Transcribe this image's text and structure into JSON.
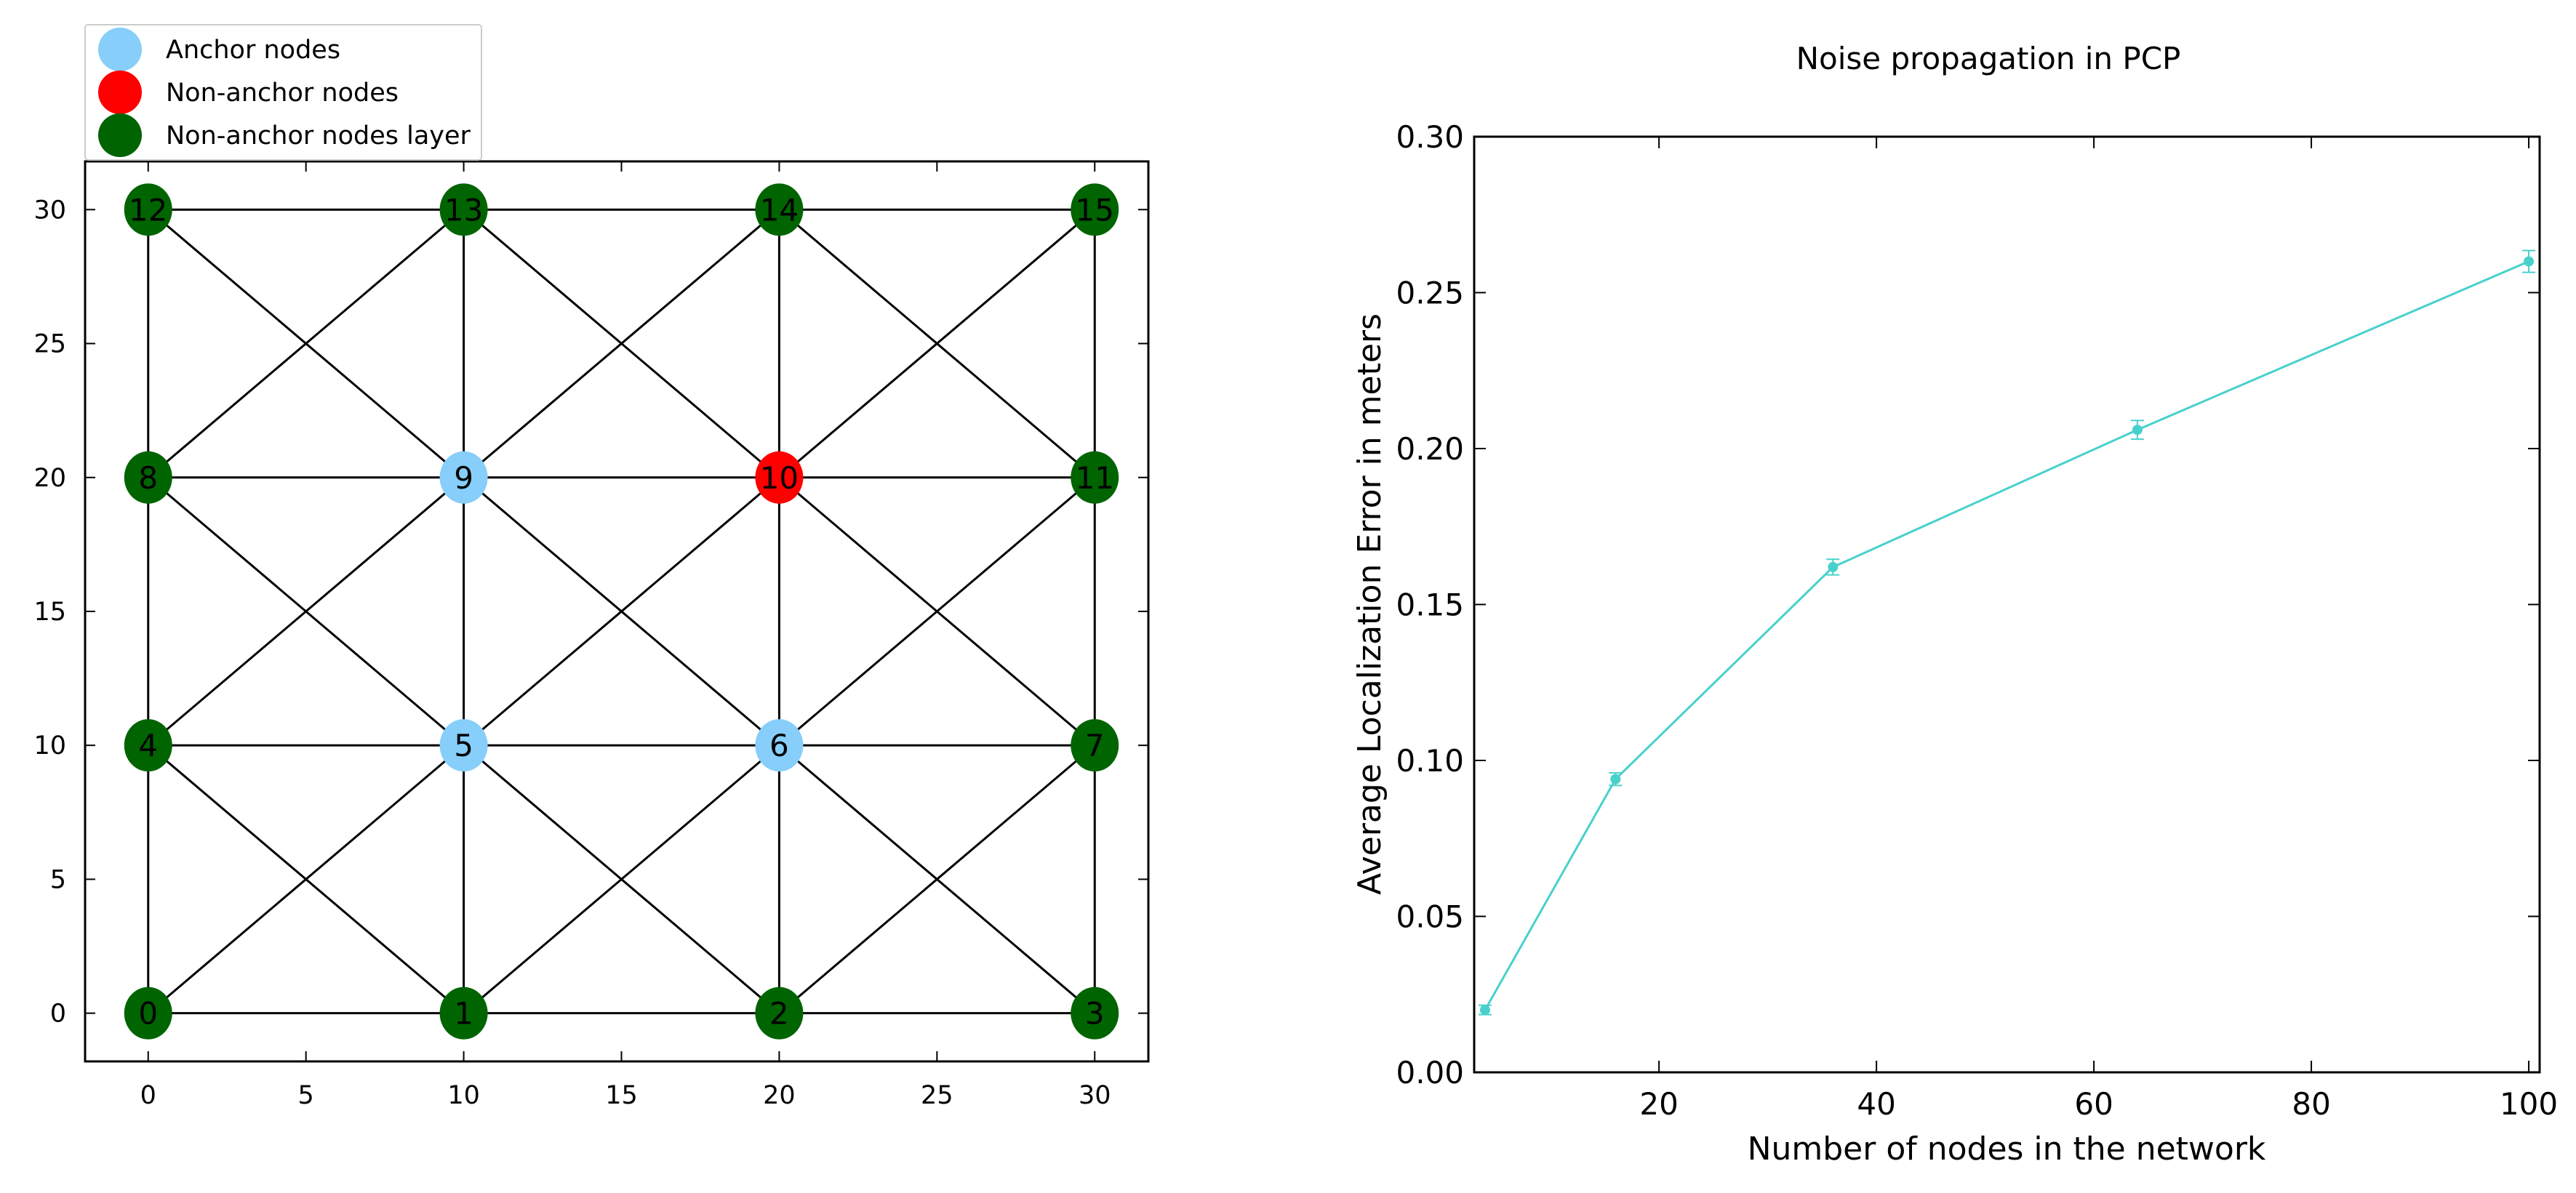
{
  "chart_data": [
    {
      "type": "scatter",
      "title": "",
      "xlabel": "",
      "ylabel": "",
      "xlim": [
        -2,
        31.7
      ],
      "ylim": [
        -1.8,
        31.8
      ],
      "xticks": [
        0,
        5,
        10,
        15,
        20,
        25,
        30
      ],
      "yticks": [
        0,
        5,
        10,
        15,
        20,
        25,
        30
      ],
      "grid": false,
      "legend_position": "top-left, above plot",
      "legend": [
        {
          "label": "Anchor nodes",
          "color": "#87CEFA"
        },
        {
          "label": "Non-anchor nodes",
          "color": "#FF0000"
        },
        {
          "label": "Non-anchor nodes layer",
          "color": "#006400"
        }
      ],
      "nodes": [
        {
          "id": "0",
          "x": 0,
          "y": 0,
          "group": 2
        },
        {
          "id": "1",
          "x": 10,
          "y": 0,
          "group": 2
        },
        {
          "id": "2",
          "x": 20,
          "y": 0,
          "group": 2
        },
        {
          "id": "3",
          "x": 30,
          "y": 0,
          "group": 2
        },
        {
          "id": "4",
          "x": 0,
          "y": 10,
          "group": 2
        },
        {
          "id": "5",
          "x": 10,
          "y": 10,
          "group": 0
        },
        {
          "id": "6",
          "x": 20,
          "y": 10,
          "group": 0
        },
        {
          "id": "7",
          "x": 30,
          "y": 10,
          "group": 2
        },
        {
          "id": "8",
          "x": 0,
          "y": 20,
          "group": 2
        },
        {
          "id": "9",
          "x": 10,
          "y": 20,
          "group": 0
        },
        {
          "id": "10",
          "x": 20,
          "y": 20,
          "group": 1
        },
        {
          "id": "11",
          "x": 30,
          "y": 20,
          "group": 2
        },
        {
          "id": "12",
          "x": 0,
          "y": 30,
          "group": 2
        },
        {
          "id": "13",
          "x": 10,
          "y": 30,
          "group": 2
        },
        {
          "id": "14",
          "x": 20,
          "y": 30,
          "group": 2
        },
        {
          "id": "15",
          "x": 30,
          "y": 30,
          "group": 2
        }
      ],
      "edges": [
        [
          0,
          1
        ],
        [
          1,
          2
        ],
        [
          2,
          3
        ],
        [
          4,
          5
        ],
        [
          5,
          6
        ],
        [
          6,
          7
        ],
        [
          8,
          9
        ],
        [
          9,
          10
        ],
        [
          10,
          11
        ],
        [
          12,
          13
        ],
        [
          13,
          14
        ],
        [
          14,
          15
        ],
        [
          0,
          4
        ],
        [
          4,
          8
        ],
        [
          8,
          12
        ],
        [
          1,
          5
        ],
        [
          5,
          9
        ],
        [
          9,
          13
        ],
        [
          2,
          6
        ],
        [
          6,
          10
        ],
        [
          10,
          14
        ],
        [
          3,
          7
        ],
        [
          7,
          11
        ],
        [
          11,
          15
        ],
        [
          0,
          5
        ],
        [
          1,
          4
        ],
        [
          1,
          6
        ],
        [
          2,
          5
        ],
        [
          2,
          7
        ],
        [
          3,
          6
        ],
        [
          4,
          9
        ],
        [
          5,
          8
        ],
        [
          5,
          10
        ],
        [
          6,
          9
        ],
        [
          6,
          11
        ],
        [
          7,
          10
        ],
        [
          8,
          13
        ],
        [
          9,
          12
        ],
        [
          9,
          14
        ],
        [
          10,
          13
        ],
        [
          10,
          15
        ],
        [
          11,
          14
        ]
      ],
      "edge_color": "#000000"
    },
    {
      "type": "line",
      "title": "Noise propagation in PCP",
      "xlabel": "Number of nodes in the network",
      "ylabel": "Average Localization Error in meters",
      "xlim": [
        3,
        101
      ],
      "ylim": [
        0,
        0.3
      ],
      "xticks": [
        20,
        40,
        60,
        80,
        100
      ],
      "yticks": [
        "0.00",
        "0.05",
        "0.10",
        "0.15",
        "0.20",
        "0.25",
        "0.30"
      ],
      "grid": false,
      "color": "#48D1CC",
      "series": [
        {
          "x": [
            4,
            16,
            36,
            64,
            100
          ],
          "y": [
            0.02,
            0.094,
            0.162,
            0.206,
            0.26
          ],
          "yerr": [
            0.0015,
            0.002,
            0.0025,
            0.003,
            0.0035
          ]
        }
      ]
    }
  ]
}
